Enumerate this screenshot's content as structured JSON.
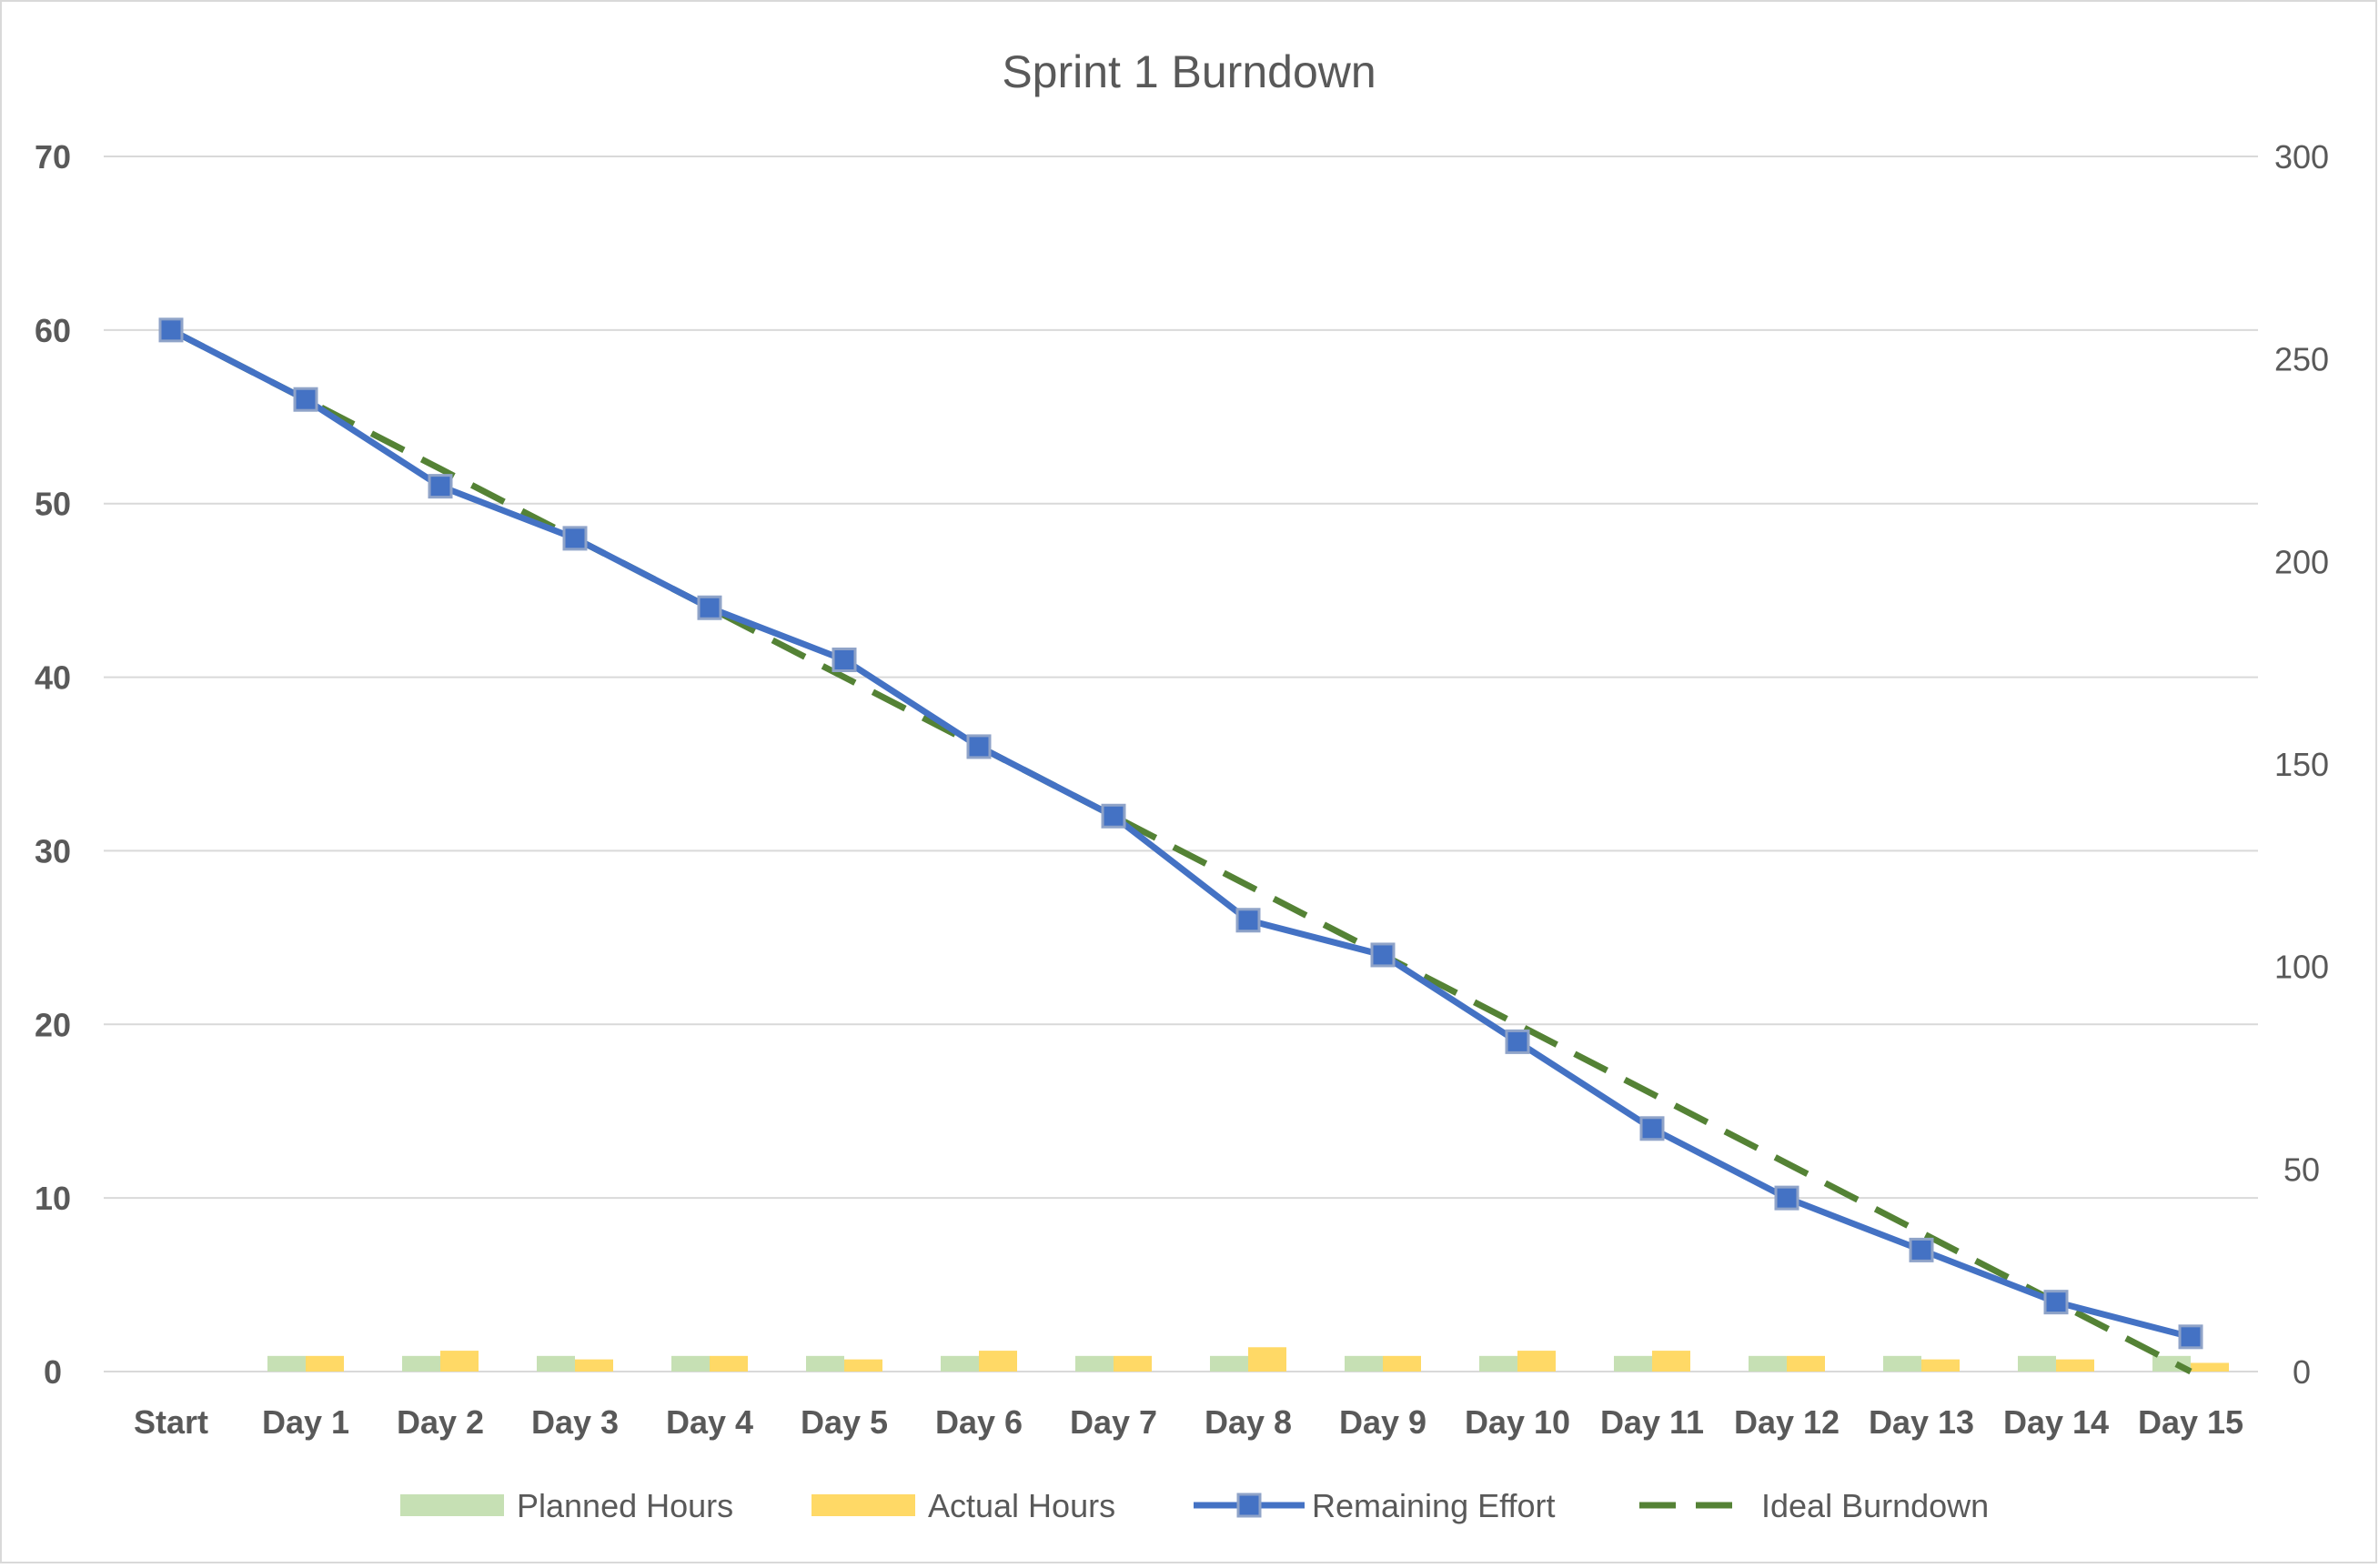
{
  "chart_data": {
    "type": "bar",
    "title": "Sprint 1 Burndown",
    "categories": [
      "Start",
      "Day 1",
      "Day 2",
      "Day 3",
      "Day 4",
      "Day 5",
      "Day 6",
      "Day 7",
      "Day 8",
      "Day 9",
      "Day 10",
      "Day 11",
      "Day 12",
      "Day 13",
      "Day 14",
      "Day 15"
    ],
    "left_axis": {
      "ylim": [
        0,
        70
      ],
      "ticks": [
        "0",
        "10",
        "20",
        "30",
        "40",
        "50",
        "60",
        "70"
      ]
    },
    "right_axis": {
      "ylim": [
        0,
        300
      ],
      "ticks": [
        "0",
        "50",
        "100",
        "150",
        "200",
        "250",
        "300"
      ]
    },
    "series": [
      {
        "name": "Planned Hours",
        "type": "bar",
        "axis": "left",
        "color": "#c6e0b4",
        "values": [
          0,
          0.9,
          0.9,
          0.9,
          0.9,
          0.9,
          0.9,
          0.9,
          0.9,
          0.9,
          0.9,
          0.9,
          0.9,
          0.9,
          0.9,
          0.9
        ]
      },
      {
        "name": "Actual Hours",
        "type": "bar",
        "axis": "left",
        "color": "#ffd966",
        "values": [
          0,
          0.9,
          1.2,
          0.7,
          0.9,
          0.7,
          1.2,
          0.9,
          1.4,
          0.9,
          1.2,
          1.2,
          0.9,
          0.7,
          0.7,
          0.5
        ]
      },
      {
        "name": "Remaining Effort",
        "type": "line",
        "axis": "left",
        "color": "#4472c4",
        "marker": "square",
        "values": [
          60,
          56,
          51,
          48,
          44,
          41,
          36,
          32,
          26,
          24,
          19,
          14,
          10,
          7,
          4,
          2
        ]
      },
      {
        "name": "Ideal Burndown",
        "type": "line",
        "axis": "left",
        "color": "#548235",
        "dashed": true,
        "values": [
          60,
          56,
          52,
          48,
          44,
          40,
          36,
          32,
          28,
          24,
          20,
          16,
          12,
          8,
          4,
          0
        ]
      }
    ],
    "grid": true,
    "legend_position": "bottom"
  }
}
